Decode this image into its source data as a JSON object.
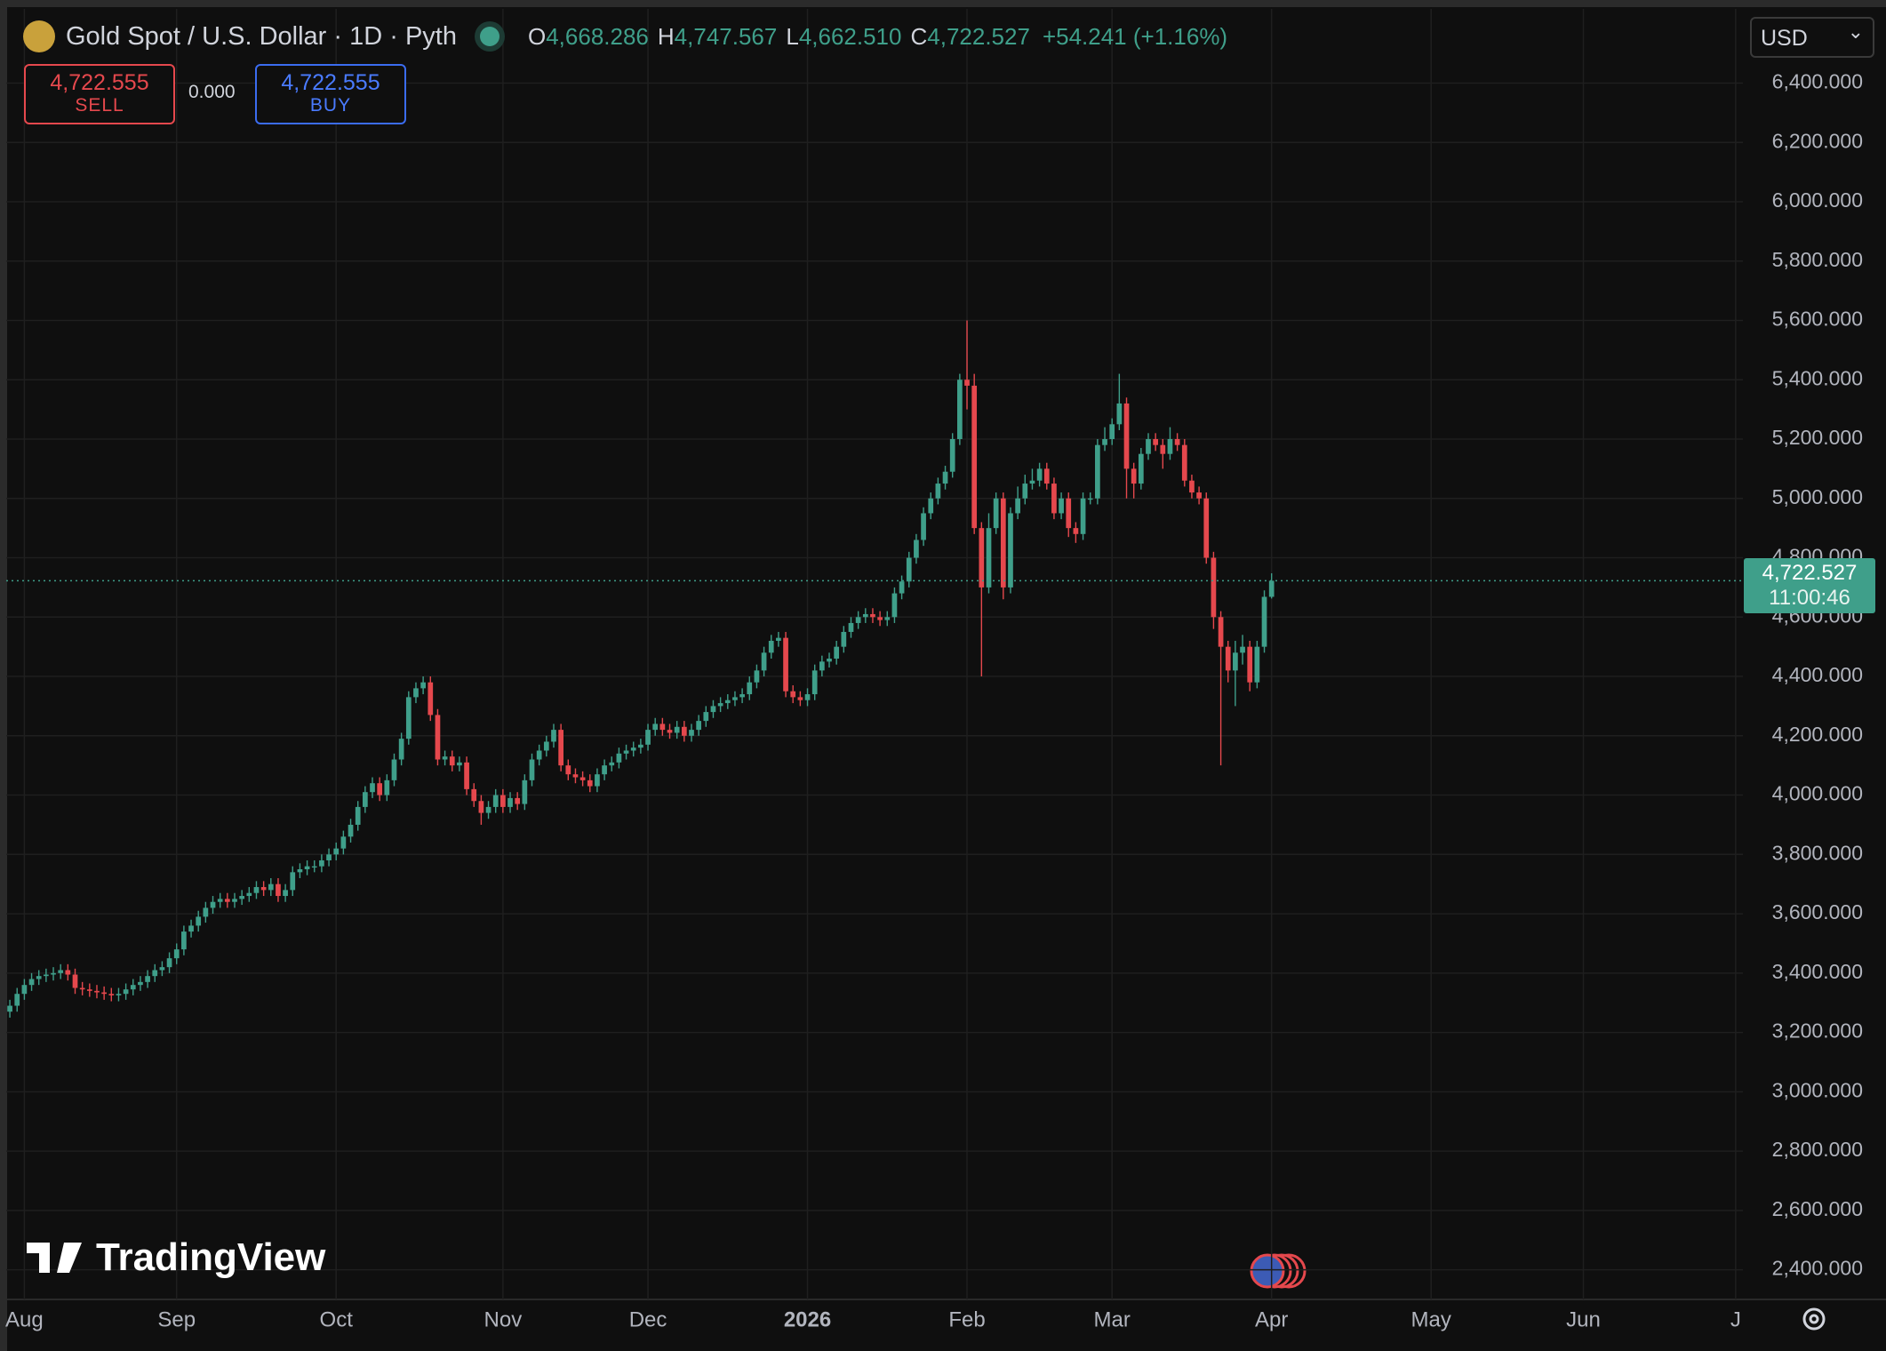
{
  "header": {
    "title": "Gold Spot / U.S. Dollar · 1D · Pyth",
    "ohlc": [
      {
        "letter": "O",
        "value": "4,668.286"
      },
      {
        "letter": "H",
        "value": "4,747.567"
      },
      {
        "letter": "L",
        "value": "4,662.510"
      },
      {
        "letter": "C",
        "value": "4,722.527"
      }
    ],
    "change": "+54.241 (+1.16%)",
    "sell": {
      "price": "4,722.555",
      "label": "SELL"
    },
    "spread": "0.000",
    "buy": {
      "price": "4,722.555",
      "label": "BUY"
    },
    "currency": "USD",
    "logo": "TradingView"
  },
  "chart_data": {
    "type": "candlestick",
    "up_color": "#3f9f8a",
    "down_color": "#e5484d",
    "grid": true,
    "open": [
      3270,
      3290,
      3330,
      3360,
      3380,
      3390,
      3395,
      3400,
      3410,
      3395,
      3350,
      3345,
      3340,
      3335,
      3330,
      3325,
      3330,
      3345,
      3360,
      3370,
      3390,
      3410,
      3420,
      3450,
      3480,
      3540,
      3560,
      3590,
      3620,
      3640,
      3650,
      3640,
      3650,
      3660,
      3670,
      3690,
      3680,
      3700,
      3660,
      3680,
      3740,
      3750,
      3760,
      3760,
      3780,
      3800,
      3820,
      3860,
      3900,
      3960,
      4010,
      4040,
      4000,
      4050,
      4120,
      4190,
      4330,
      4360,
      4380,
      4270,
      4120,
      4130,
      4100,
      4110,
      4020,
      3980,
      3940,
      3960,
      4000,
      3960,
      3990,
      3970,
      4050,
      4120,
      4150,
      4180,
      4220,
      4100,
      4070,
      4060,
      4050,
      4030,
      4070,
      4100,
      4110,
      4140,
      4150,
      4160,
      4170,
      4220,
      4240,
      4220,
      4210,
      4230,
      4200,
      4220,
      4250,
      4280,
      4300,
      4310,
      4320,
      4330,
      4340,
      4380,
      4420,
      4480,
      4520,
      4530,
      4350,
      4330,
      4320,
      4340,
      4420,
      4450,
      4460,
      4500,
      4550,
      4580,
      4600,
      4610,
      4600,
      4590,
      4600,
      4680,
      4720,
      4800,
      4860,
      4950,
      5000,
      5050,
      5090,
      5200,
      5400,
      5380,
      4900,
      4700,
      4900,
      5000,
      4700,
      4950,
      5000,
      5050,
      5060,
      5100,
      5050,
      4950,
      5000,
      4900,
      4880,
      5000,
      5000,
      5180,
      5200,
      5250,
      5320,
      5100,
      5050,
      5150,
      5200,
      5180,
      5150,
      5200,
      5180,
      5060,
      5020,
      5000,
      4800,
      4600,
      4500,
      4420,
      4480,
      4500,
      4380,
      4500,
      4668.286
    ],
    "high": [
      3310,
      3350,
      3380,
      3400,
      3410,
      3415,
      3420,
      3430,
      3430,
      3415,
      3370,
      3365,
      3360,
      3355,
      3350,
      3350,
      3365,
      3380,
      3390,
      3410,
      3430,
      3440,
      3470,
      3500,
      3560,
      3580,
      3610,
      3640,
      3660,
      3670,
      3670,
      3670,
      3680,
      3690,
      3710,
      3710,
      3720,
      3720,
      3700,
      3760,
      3770,
      3780,
      3780,
      3800,
      3820,
      3840,
      3880,
      3920,
      3980,
      4030,
      4060,
      4060,
      4070,
      4140,
      4210,
      4350,
      4380,
      4400,
      4400,
      4290,
      4150,
      4150,
      4130,
      4130,
      4040,
      4000,
      3980,
      4020,
      4020,
      4010,
      4010,
      4070,
      4140,
      4170,
      4200,
      4240,
      4240,
      4120,
      4090,
      4080,
      4070,
      4090,
      4120,
      4130,
      4160,
      4170,
      4180,
      4190,
      4240,
      4260,
      4260,
      4240,
      4250,
      4250,
      4240,
      4270,
      4300,
      4320,
      4330,
      4340,
      4350,
      4360,
      4400,
      4440,
      4500,
      4540,
      4550,
      4550,
      4370,
      4350,
      4360,
      4440,
      4470,
      4480,
      4520,
      4570,
      4600,
      4620,
      4630,
      4630,
      4620,
      4620,
      4700,
      4740,
      4820,
      4880,
      4970,
      5020,
      5070,
      5110,
      5220,
      5420,
      5600,
      5420,
      4920,
      4950,
      5020,
      5020,
      4970,
      5040,
      5080,
      5100,
      5120,
      5120,
      5070,
      5020,
      5020,
      4920,
      5020,
      5020,
      5200,
      5240,
      5270,
      5420,
      5340,
      5120,
      5170,
      5220,
      5220,
      5200,
      5240,
      5220,
      5200,
      5080,
      5040,
      5020,
      4820,
      4620,
      4520,
      4520,
      4540,
      4520,
      4520,
      4690,
      4747.567
    ],
    "low": [
      3250,
      3270,
      3310,
      3340,
      3360,
      3370,
      3375,
      3380,
      3375,
      3330,
      3325,
      3320,
      3315,
      3310,
      3305,
      3305,
      3310,
      3325,
      3340,
      3350,
      3370,
      3390,
      3400,
      3430,
      3460,
      3520,
      3540,
      3570,
      3600,
      3620,
      3620,
      3620,
      3630,
      3640,
      3650,
      3660,
      3660,
      3640,
      3640,
      3660,
      3720,
      3730,
      3740,
      3740,
      3760,
      3780,
      3800,
      3840,
      3880,
      3940,
      3990,
      3980,
      3980,
      4030,
      4100,
      4170,
      4310,
      4340,
      4250,
      4100,
      4100,
      4080,
      4080,
      4000,
      3960,
      3900,
      3920,
      3940,
      3940,
      3940,
      3950,
      3950,
      4030,
      4100,
      4130,
      4160,
      4080,
      4050,
      4040,
      4030,
      4010,
      4010,
      4050,
      4080,
      4090,
      4120,
      4130,
      4140,
      4150,
      4200,
      4200,
      4190,
      4190,
      4180,
      4180,
      4200,
      4230,
      4260,
      4280,
      4290,
      4300,
      4310,
      4320,
      4360,
      4400,
      4460,
      4500,
      4330,
      4310,
      4300,
      4300,
      4320,
      4400,
      4430,
      4440,
      4480,
      4530,
      4560,
      4580,
      4580,
      4570,
      4570,
      4580,
      4660,
      4700,
      4780,
      4840,
      4930,
      4980,
      5030,
      5070,
      5180,
      5300,
      4880,
      4400,
      4680,
      4880,
      4660,
      4680,
      4930,
      4980,
      5030,
      5040,
      5030,
      4930,
      4930,
      4870,
      4850,
      4860,
      4980,
      4980,
      5160,
      5180,
      5230,
      5000,
      5000,
      5030,
      5130,
      5160,
      5100,
      5130,
      5160,
      5040,
      5000,
      4980,
      4780,
      4560,
      4100,
      4380,
      4300,
      4440,
      4350,
      4360,
      4480,
      4662.51
    ],
    "close": [
      3290,
      3330,
      3360,
      3380,
      3390,
      3395,
      3400,
      3410,
      3395,
      3350,
      3345,
      3340,
      3335,
      3330,
      3325,
      3330,
      3345,
      3360,
      3370,
      3390,
      3410,
      3420,
      3450,
      3480,
      3540,
      3560,
      3590,
      3620,
      3640,
      3650,
      3640,
      3650,
      3660,
      3670,
      3690,
      3680,
      3700,
      3660,
      3680,
      3740,
      3750,
      3760,
      3760,
      3780,
      3800,
      3820,
      3860,
      3900,
      3960,
      4010,
      4040,
      4000,
      4050,
      4120,
      4190,
      4330,
      4360,
      4380,
      4270,
      4120,
      4130,
      4100,
      4110,
      4020,
      3980,
      3940,
      3960,
      4000,
      3960,
      3990,
      3970,
      4050,
      4120,
      4150,
      4180,
      4220,
      4100,
      4070,
      4060,
      4050,
      4030,
      4070,
      4100,
      4110,
      4140,
      4150,
      4160,
      4170,
      4220,
      4240,
      4220,
      4210,
      4230,
      4200,
      4220,
      4250,
      4280,
      4300,
      4310,
      4320,
      4330,
      4340,
      4380,
      4420,
      4480,
      4520,
      4530,
      4350,
      4330,
      4320,
      4340,
      4420,
      4450,
      4460,
      4500,
      4550,
      4580,
      4600,
      4610,
      4600,
      4590,
      4600,
      4680,
      4720,
      4800,
      4860,
      4950,
      5000,
      5050,
      5090,
      5200,
      5400,
      5380,
      4900,
      4700,
      4900,
      5000,
      4700,
      4950,
      5000,
      5050,
      5060,
      5100,
      5050,
      4950,
      5000,
      4900,
      4880,
      5000,
      5000,
      5180,
      5200,
      5250,
      5320,
      5100,
      5050,
      5150,
      5200,
      5180,
      5150,
      5200,
      5180,
      5060,
      5020,
      5000,
      4800,
      4600,
      4500,
      4420,
      4480,
      4500,
      4380,
      4500,
      4668.286,
      4722.527
    ],
    "xlim": [
      -0.5,
      239
    ],
    "xticks": [
      {
        "value": 2,
        "label": "Aug"
      },
      {
        "value": 23,
        "label": "Sep"
      },
      {
        "value": 45,
        "label": "Oct"
      },
      {
        "value": 68,
        "label": "Nov"
      },
      {
        "value": 88,
        "label": "Dec"
      },
      {
        "value": 110,
        "label": "2026"
      },
      {
        "value": 132,
        "label": "Feb"
      },
      {
        "value": 152,
        "label": "Mar"
      },
      {
        "value": 174,
        "label": "Apr"
      },
      {
        "value": 196,
        "label": "May"
      },
      {
        "value": 217,
        "label": "Jun"
      },
      {
        "value": 238,
        "label": "J"
      }
    ],
    "ylim": [
      2300,
      6650
    ],
    "yticks": [
      {
        "value": 2400,
        "label": "2,400.000"
      },
      {
        "value": 2600,
        "label": "2,600.000"
      },
      {
        "value": 2800,
        "label": "2,800.000"
      },
      {
        "value": 3000,
        "label": "3,000.000"
      },
      {
        "value": 3200,
        "label": "3,200.000"
      },
      {
        "value": 3400,
        "label": "3,400.000"
      },
      {
        "value": 3600,
        "label": "3,600.000"
      },
      {
        "value": 3800,
        "label": "3,800.000"
      },
      {
        "value": 4000,
        "label": "4,000.000"
      },
      {
        "value": 4200,
        "label": "4,200.000"
      },
      {
        "value": 4400,
        "label": "4,400.000"
      },
      {
        "value": 4600,
        "label": "4,600.000"
      },
      {
        "value": 4800,
        "label": "4,800.000"
      },
      {
        "value": 5000,
        "label": "5,000.000"
      },
      {
        "value": 5200,
        "label": "5,200.000"
      },
      {
        "value": 5400,
        "label": "5,400.000"
      },
      {
        "value": 5600,
        "label": "5,600.000"
      },
      {
        "value": 5800,
        "label": "5,800.000"
      },
      {
        "value": 6000,
        "label": "6,000.000"
      },
      {
        "value": 6200,
        "label": "6,200.000"
      },
      {
        "value": 6400,
        "label": "6,400.000"
      }
    ],
    "price_tag": {
      "value": 4722.527,
      "label": "4,722.527",
      "countdown": "11:00:46",
      "color": "#3f9f8a"
    }
  }
}
